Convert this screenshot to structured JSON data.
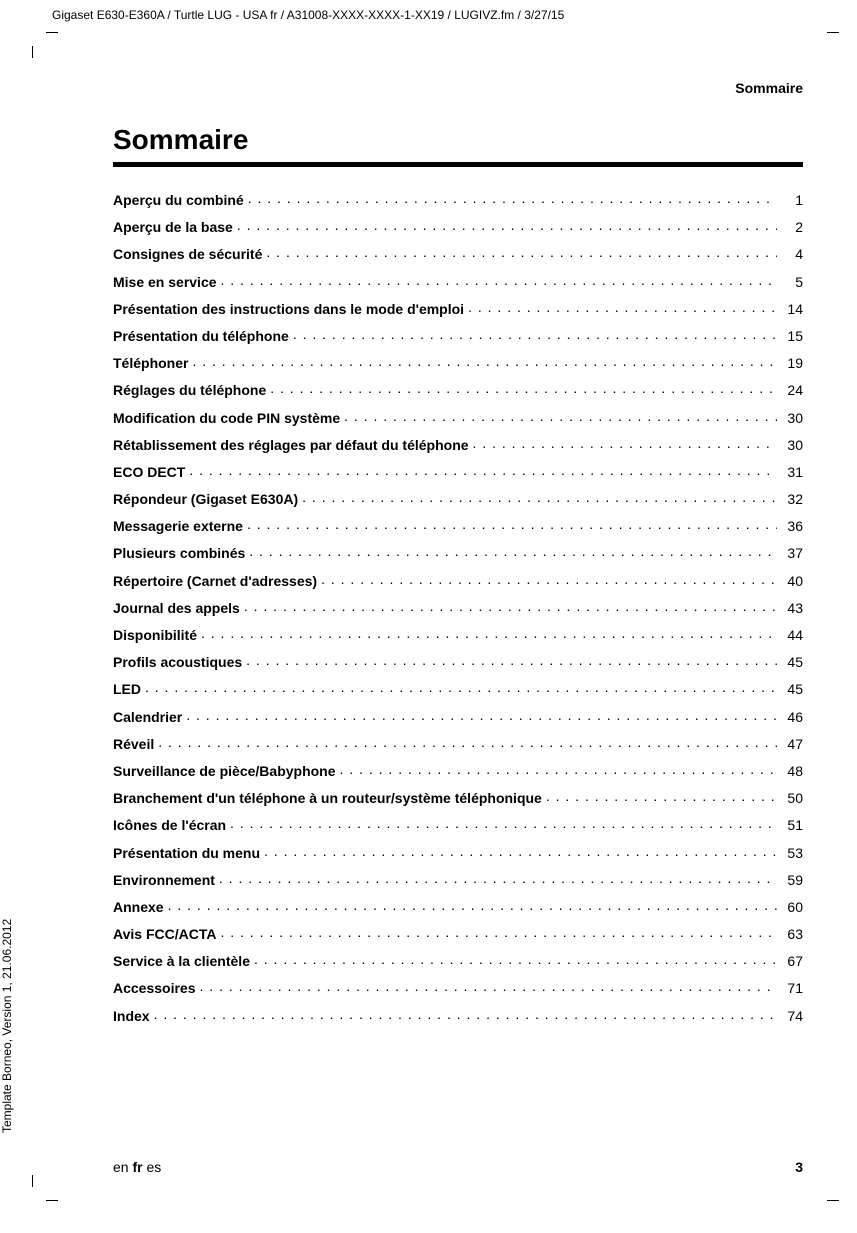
{
  "header_path": "Gigaset E630-E360A / Turtle LUG - USA fr / A31008-XXXX-XXXX-1-XX19 / LUGIVZ.fm / 3/27/15",
  "sidebar_text": "Template Borneo, Version 1, 21.06.2012",
  "running_head": "Sommaire",
  "title": "Sommaire",
  "footer": {
    "lang_en": "en ",
    "lang_fr": "fr",
    "lang_es": " es",
    "page": "3"
  },
  "toc": [
    {
      "label": "Aperçu du combiné ",
      "page": "1"
    },
    {
      "label": "Aperçu de la base",
      "page": "2"
    },
    {
      "label": "Consignes de sécurité ",
      "page": "4"
    },
    {
      "label": "Mise en service ",
      "page": "5"
    },
    {
      "label": "Présentation des instructions dans le mode d'emploi ",
      "page": "14"
    },
    {
      "label": "Présentation du téléphone",
      "page": "15"
    },
    {
      "label": "Téléphoner ",
      "page": "19"
    },
    {
      "label": "Réglages du téléphone ",
      "page": "24"
    },
    {
      "label": "Modification du code PIN système ",
      "page": "30"
    },
    {
      "label": "Rétablissement des réglages par défaut du téléphone ",
      "page": "30"
    },
    {
      "label": "ECO DECT ",
      "page": "31"
    },
    {
      "label": "Répondeur (Gigaset E630A) ",
      "page": "32"
    },
    {
      "label": "Messagerie externe ",
      "page": "36"
    },
    {
      "label": "Plusieurs combinés ",
      "page": "37"
    },
    {
      "label": "Répertoire (Carnet d'adresses) ",
      "page": "40"
    },
    {
      "label": "Journal des appels ",
      "page": "43"
    },
    {
      "label": "Disponibilité ",
      "page": "44"
    },
    {
      "label": "Profils acoustiques ",
      "page": "45"
    },
    {
      "label": "LED ",
      "page": "45"
    },
    {
      "label": "Calendrier ",
      "page": "46"
    },
    {
      "label": "Réveil ",
      "page": "47"
    },
    {
      "label": "Surveillance de pièce/Babyphone ",
      "page": "48"
    },
    {
      "label": "Branchement d'un téléphone à un routeur/système téléphonique ",
      "page": "50"
    },
    {
      "label": "Icônes de l'écran ",
      "page": "51"
    },
    {
      "label": "Présentation du menu ",
      "page": "53"
    },
    {
      "label": "Environnement ",
      "page": "59"
    },
    {
      "label": "Annexe",
      "page": "60"
    },
    {
      "label": "Avis FCC/ACTA ",
      "page": "63"
    },
    {
      "label": "Service à la clientèle ",
      "page": "67"
    },
    {
      "label": "Accessoires ",
      "page": "71"
    },
    {
      "label": "Index",
      "page": "74"
    }
  ]
}
